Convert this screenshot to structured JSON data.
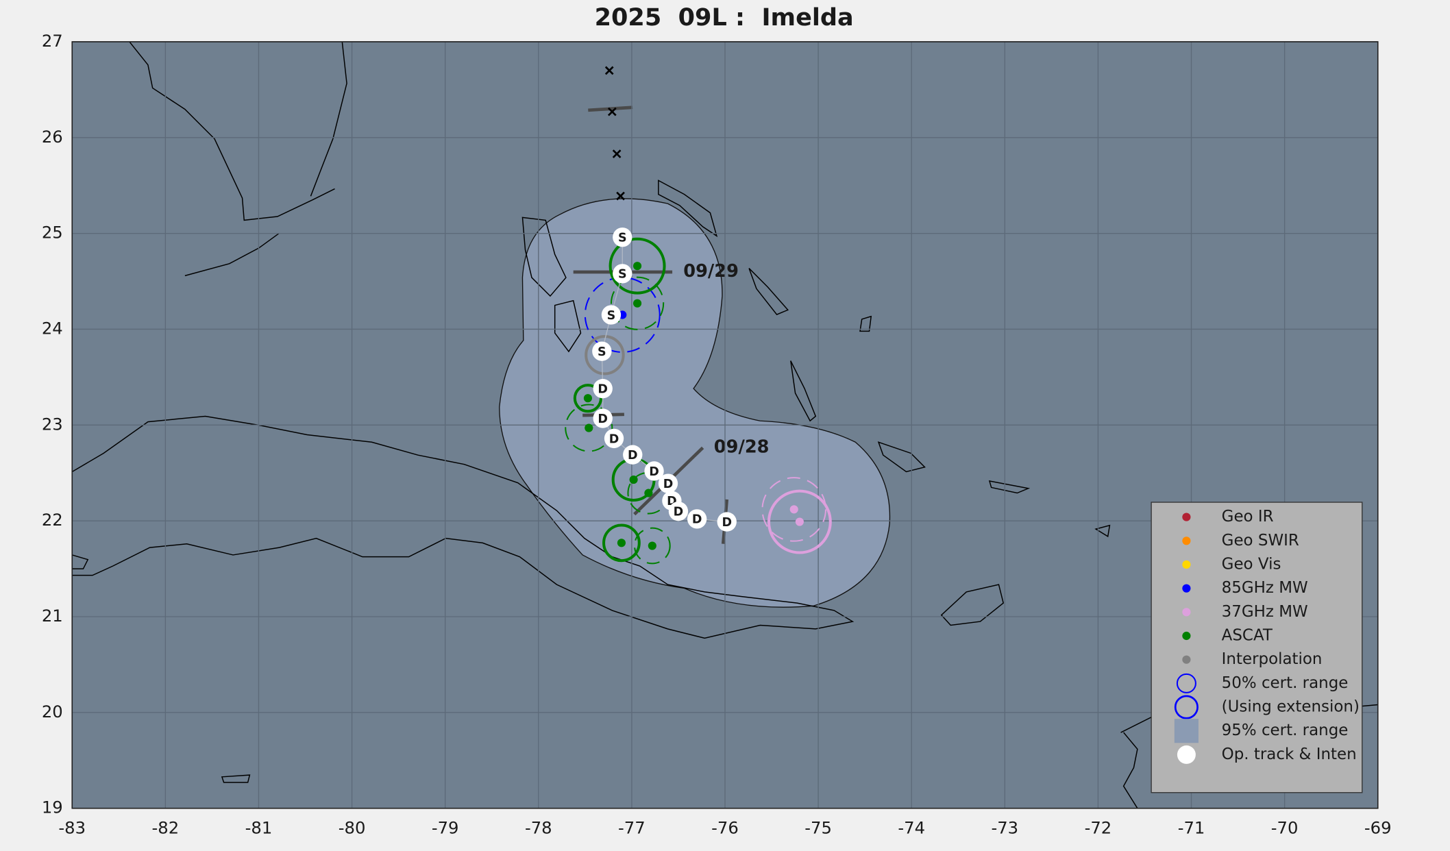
{
  "chart_data": {
    "type": "map",
    "title": "2025  09L :  Imelda",
    "xlim": [
      -83,
      -69
    ],
    "ylim": [
      19,
      27
    ],
    "xticks": [
      -83,
      -82,
      -81,
      -80,
      -79,
      -78,
      -77,
      -76,
      -75,
      -74,
      -73,
      -72,
      -71,
      -70,
      -69
    ],
    "yticks": [
      19,
      20,
      21,
      22,
      23,
      24,
      25,
      26,
      27
    ],
    "grid": true,
    "annotations": [
      "09/29",
      "09/28"
    ],
    "x_marks": {
      "lon": [
        -77.24,
        -77.21,
        -77.16,
        -77.12
      ],
      "lat": [
        26.7,
        26.27,
        25.83,
        25.39
      ]
    },
    "series": [
      {
        "name": "Geo IR",
        "color": "#b22234",
        "symbol": "dot",
        "lon": [],
        "lat": [],
        "radius": [],
        "dashed": []
      },
      {
        "name": "Geo SWIR",
        "color": "#ff8c00",
        "symbol": "dot",
        "lon": [],
        "lat": [],
        "radius": [],
        "dashed": []
      },
      {
        "name": "Geo Vis",
        "color": "#ffd700",
        "symbol": "dot",
        "lon": [],
        "lat": [],
        "radius": [],
        "dashed": []
      },
      {
        "name": "85GHz MW",
        "color": "#0000ff",
        "symbol": "dot",
        "lon": [
          -77.1
        ],
        "lat": [
          24.15
        ],
        "radius": [
          0.4
        ],
        "dashed": [
          true
        ]
      },
      {
        "name": "37GHz MW",
        "color": "#dda0dd",
        "symbol": "dot",
        "lon": [
          -75.26,
          -75.2
        ],
        "lat": [
          22.12,
          21.99
        ],
        "radius": [
          0.34,
          0.33
        ],
        "dashed": [
          true,
          false
        ]
      },
      {
        "name": "ASCAT",
        "color": "#008000",
        "symbol": "dot",
        "lon": [
          -76.94,
          -76.94,
          -77.47,
          -77.46,
          -76.98,
          -76.82,
          -77.11,
          -76.78
        ],
        "lat": [
          24.66,
          24.27,
          23.28,
          22.97,
          22.43,
          22.29,
          21.77,
          21.74
        ],
        "radius": [
          0.29,
          0.28,
          0.14,
          0.25,
          0.22,
          0.22,
          0.19,
          0.19
        ],
        "dashed": [
          false,
          true,
          false,
          true,
          false,
          true,
          false,
          true
        ]
      },
      {
        "name": "Interpolation",
        "color": "#808080",
        "symbol": "dot",
        "lon": [
          -77.29
        ],
        "lat": [
          23.73
        ],
        "radius": [
          0.2
        ],
        "dashed": [
          false
        ]
      },
      {
        "name": "50% cert. range",
        "color": "#0000ff",
        "symbol": "circle",
        "lon": [],
        "lat": [],
        "radius": [],
        "dashed": []
      },
      {
        "name": "(Using extension)",
        "color": "#0000ff",
        "symbol": "thick-circle",
        "lon": [],
        "lat": [],
        "radius": [],
        "dashed": []
      },
      {
        "name": "95% cert. range",
        "color": "#8b9bb3",
        "symbol": "square",
        "lon": [],
        "lat": [],
        "radius": [],
        "dashed": []
      },
      {
        "name": "Op. track & Inten",
        "color": "#ffffff",
        "symbol": "track",
        "labels": [
          "S",
          "S",
          "S",
          "S",
          "D",
          "D",
          "D",
          "D",
          "D",
          "D",
          "D",
          "D",
          "D",
          "D"
        ],
        "lon": [
          -77.1,
          -77.1,
          -77.22,
          -77.32,
          -77.31,
          -77.31,
          -77.19,
          -76.99,
          -76.76,
          -76.61,
          -76.57,
          -76.5,
          -76.3,
          -75.98
        ],
        "lat": [
          24.96,
          24.58,
          24.15,
          23.77,
          23.38,
          23.07,
          22.86,
          22.69,
          22.52,
          22.39,
          22.21,
          22.1,
          22.02,
          21.99
        ]
      }
    ]
  }
}
